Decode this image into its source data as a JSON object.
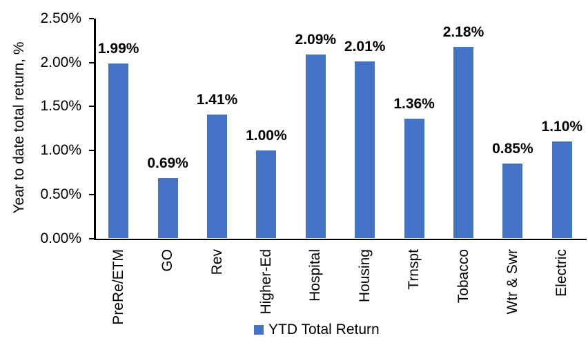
{
  "chart_data": {
    "type": "bar",
    "title": "",
    "ylabel": "Year to date total return, %",
    "xlabel": "",
    "categories": [
      "PreRe/ETM",
      "GO",
      "Rev",
      "Higher-Ed",
      "Hospital",
      "Housing",
      "Trnspt",
      "Tobacco",
      "Wtr & Swr",
      "Electric"
    ],
    "values": [
      1.99,
      0.69,
      1.41,
      1.0,
      2.09,
      2.01,
      1.36,
      2.18,
      0.85,
      1.1
    ],
    "value_labels": [
      "1.99%",
      "0.69%",
      "1.41%",
      "1.00%",
      "2.09%",
      "2.01%",
      "1.36%",
      "2.18%",
      "0.85%",
      "1.10%"
    ],
    "series_name": "YTD Total Return",
    "ylim": [
      0,
      2.5
    ],
    "yticks": [
      "0.00%",
      "0.50%",
      "1.00%",
      "1.50%",
      "2.00%",
      "2.50%"
    ],
    "ytick_values": [
      0,
      0.5,
      1.0,
      1.5,
      2.0,
      2.5
    ],
    "grid": "off",
    "legend_position": "bottom-center",
    "bar_color": "#4472C4",
    "axis_color": "#000000",
    "text_color": "#000000"
  },
  "legend": {
    "label": "YTD Total Return",
    "swatch_icon": "blue-square-icon"
  }
}
